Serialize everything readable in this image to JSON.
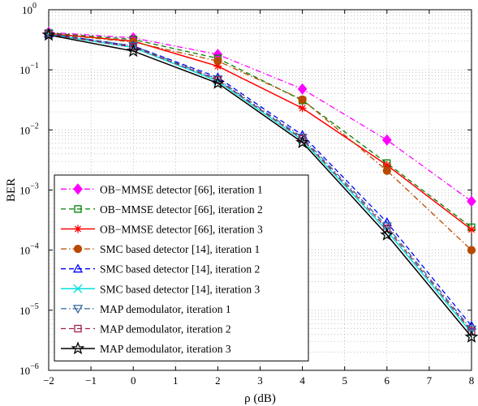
{
  "chart_data": {
    "type": "line",
    "xlabel": "ρ (dB)",
    "ylabel": "BER",
    "xlim": [
      -2,
      8
    ],
    "ylim": [
      1e-06,
      1
    ],
    "yscale": "log",
    "grid": true,
    "legend_position": "bottom-left",
    "x_ticks": [
      "−2",
      "−1",
      "0",
      "1",
      "2",
      "3",
      "4",
      "5",
      "6",
      "7",
      "8"
    ],
    "y_ticks": [
      {
        "base": "10",
        "exp": "0"
      },
      {
        "base": "10",
        "exp": "−1"
      },
      {
        "base": "10",
        "exp": "−2"
      },
      {
        "base": "10",
        "exp": "−3"
      },
      {
        "base": "10",
        "exp": "−4"
      },
      {
        "base": "10",
        "exp": "−5"
      },
      {
        "base": "10",
        "exp": "−6"
      }
    ],
    "x": [
      -2,
      0,
      2,
      4,
      6,
      8
    ],
    "series": [
      {
        "name": "OB−MMSE detector [66], iteration 1",
        "color": "#ff00ff",
        "dash": "dashdot",
        "marker": "diamond",
        "filled": true,
        "values": [
          0.42,
          0.34,
          0.18,
          0.048,
          0.0068,
          0.00065
        ]
      },
      {
        "name": "OB−MMSE detector [66], iteration 2",
        "color": "#008000",
        "dash": "dashed",
        "marker": "square",
        "filled": false,
        "values": [
          0.41,
          0.32,
          0.155,
          0.031,
          0.0028,
          0.00024
        ]
      },
      {
        "name": "OB−MMSE detector [66], iteration 3",
        "color": "#ff0000",
        "dash": "solid",
        "marker": "asterisk",
        "filled": false,
        "values": [
          0.4,
          0.3,
          0.115,
          0.023,
          0.0026,
          0.00022
        ]
      },
      {
        "name": "SMC based detector [14], iteration 1",
        "color": "#b84a00",
        "dash": "dashdot",
        "marker": "circle",
        "filled": true,
        "values": [
          0.4,
          0.29,
          0.14,
          0.032,
          0.0021,
          0.0001
        ]
      },
      {
        "name": "SMC based detector [14], iteration 2",
        "color": "#0000ff",
        "dash": "dashed",
        "marker": "triangle-up",
        "filled": false,
        "values": [
          0.4,
          0.25,
          0.075,
          0.0082,
          0.00029,
          5.5e-06
        ]
      },
      {
        "name": "SMC based detector [14], iteration 3",
        "color": "#00e0e0",
        "dash": "solid",
        "marker": "x",
        "filled": false,
        "values": [
          0.39,
          0.235,
          0.065,
          0.0068,
          0.00021,
          4.2e-06
        ]
      },
      {
        "name": "MAP demodulator, iteration 1",
        "color": "#336699",
        "dash": "dashdot",
        "marker": "triangle-down",
        "filled": false,
        "values": [
          0.4,
          0.25,
          0.07,
          0.0075,
          0.00025,
          4.8e-06
        ]
      },
      {
        "name": "MAP demodulator, iteration 2",
        "color": "#a0204a",
        "dash": "dashed",
        "marker": "square",
        "filled": false,
        "values": [
          0.39,
          0.24,
          0.068,
          0.0071,
          0.00023,
          4.5e-06
        ]
      },
      {
        "name": "MAP demodulator, iteration 3",
        "color": "#000000",
        "dash": "solid",
        "marker": "star",
        "filled": false,
        "values": [
          0.38,
          0.205,
          0.06,
          0.0062,
          0.00018,
          3.6e-06
        ]
      }
    ]
  }
}
